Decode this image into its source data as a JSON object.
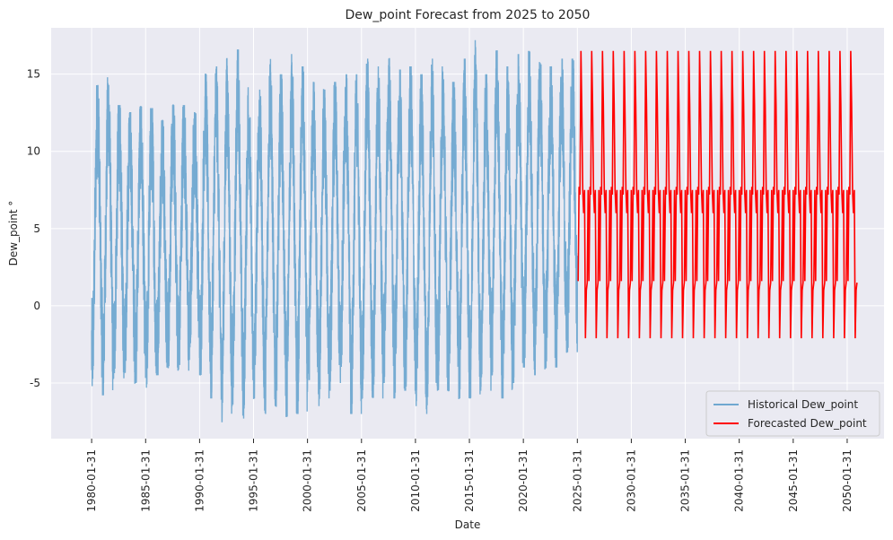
{
  "chart_data": {
    "type": "line",
    "title": "Dew_point Forecast from 2025 to 2050",
    "xlabel": "Date",
    "ylabel": "Dew_point °",
    "x_range": [
      "1976-05-01",
      "2053-07-01"
    ],
    "ylim": [
      -8.6,
      18.0
    ],
    "x_ticks": [
      "1980-01-31",
      "1985-01-31",
      "1990-01-31",
      "1995-01-31",
      "2000-01-31",
      "2005-01-31",
      "2010-01-31",
      "2015-01-31",
      "2020-01-31",
      "2025-01-31",
      "2030-01-31",
      "2035-01-31",
      "2040-01-31",
      "2045-01-31",
      "2050-01-31"
    ],
    "y_ticks": [
      -5,
      0,
      5,
      10,
      15
    ],
    "grid": true,
    "legend_position": "bottom-right",
    "series": [
      {
        "name": "Historical Dew_point",
        "color": "#6fa8d0",
        "description_range": [
          "1980-01-31",
          "2025-01-31"
        ],
        "yearly_peaks": [
          14.3,
          14.8,
          13.0,
          12.5,
          12.9,
          12.8,
          12.0,
          13.0,
          13.0,
          12.5,
          15.0,
          15.5,
          16.0,
          16.6,
          14.5,
          14.0,
          16.0,
          15.0,
          16.3,
          15.5,
          14.5,
          14.0,
          14.5,
          15.0,
          15.0,
          16.0,
          15.5,
          16.0,
          15.3,
          15.5,
          15.0,
          16.0,
          15.5,
          14.5,
          16.0,
          17.2,
          15.0,
          16.5,
          15.5,
          16.3,
          16.5,
          16.0,
          15.5,
          16.0,
          16.0,
          16.8
        ],
        "yearly_troughs": [
          -5.2,
          -5.8,
          -4.7,
          -4.3,
          -5.0,
          -5.3,
          -4.5,
          -4.0,
          -4.2,
          -3.5,
          -4.5,
          -6.0,
          -7.5,
          -6.5,
          -7.3,
          -6.0,
          -7.0,
          -6.5,
          -7.2,
          -7.0,
          -6.0,
          -6.5,
          -5.5,
          -5.0,
          -7.0,
          -6.0,
          -6.0,
          -5.0,
          -6.0,
          -5.5,
          -6.5,
          -7.0,
          -5.5,
          -5.5,
          -6.0,
          -6.0,
          -5.5,
          -4.5,
          -6.0,
          -5.0,
          -4.0,
          -4.5,
          -4.0,
          -4.0,
          -3.0,
          -2.0
        ],
        "noise_amplitude": 3.5
      },
      {
        "name": "Forecasted Dew_point",
        "color": "#ff0000",
        "start": "2025-02-28",
        "end": "2050-12-31",
        "frequency": "monthly",
        "monthly_cycle": [
          1.6,
          7.7,
          7.2,
          16.5,
          13.0,
          7.5,
          6.0,
          7.5,
          -2.1,
          1.0,
          1.5,
          7.5
        ]
      }
    ]
  }
}
